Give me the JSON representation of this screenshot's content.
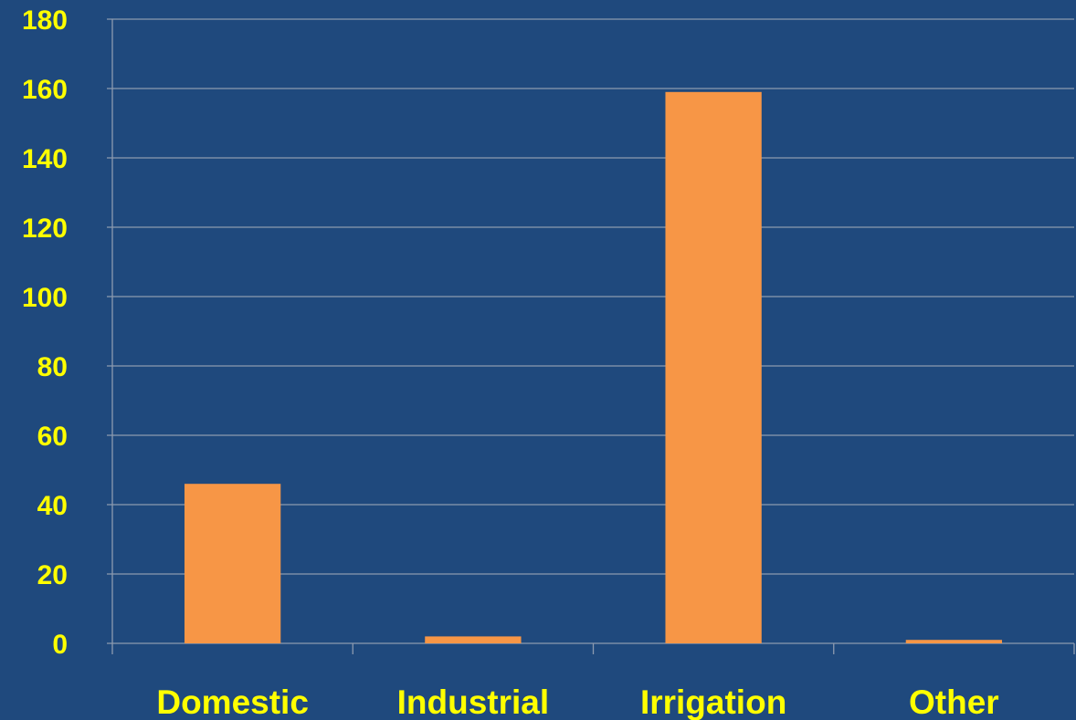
{
  "colors": {
    "background": "#1f497d",
    "bar": "#f79646",
    "gridline": "#8c9ab0",
    "axis": "#8c9ab0",
    "tick_label": "#ffff00"
  },
  "chart_data": {
    "type": "bar",
    "categories": [
      "Domestic",
      "Industrial",
      "Irrigation",
      "Other"
    ],
    "values": [
      46,
      2,
      159,
      1
    ],
    "ylim": [
      0,
      180
    ],
    "yticks": [
      "0",
      "20",
      "40",
      "60",
      "80",
      "100",
      "120",
      "140",
      "160",
      "180"
    ],
    "grid": true,
    "legend": "none"
  }
}
